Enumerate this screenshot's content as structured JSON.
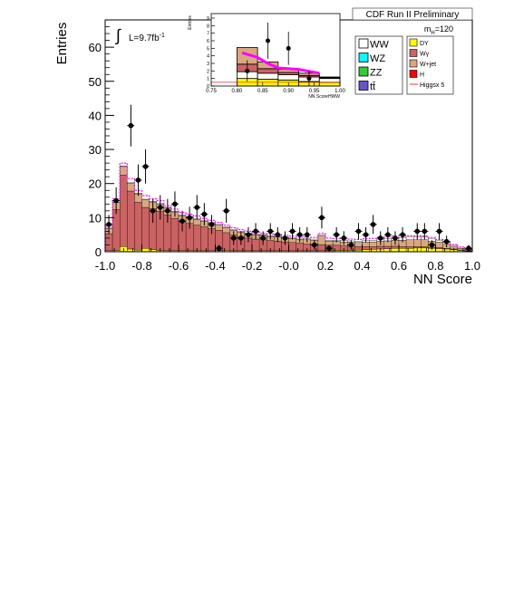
{
  "header": {
    "title": "CDF Run II Preliminary",
    "mass_label_base": "m",
    "mass_label_sub": "H",
    "mass_label_value": "=120"
  },
  "luminosity": {
    "symbol": "∫",
    "text": "L=9.7fb",
    "superscript": "-1"
  },
  "colors": {
    "wgamma": "#cc6262",
    "wjet": "#d9a87f",
    "dy": "#ffff00",
    "ww": "#ffffff",
    "wz": "#00ffff",
    "zz": "#33cc33",
    "ttbar": "#6655cc",
    "higgs": "#ff00ff",
    "h": "#ff0000",
    "data": "#000000"
  },
  "chart_data": [
    {
      "type": "bar",
      "subtype": "stacked-histogram",
      "xlabel": "NN Score",
      "ylabel": "Entries",
      "xlim": [
        -1.0,
        1.0
      ],
      "ylim": [
        0,
        68
      ],
      "xticks": [
        -1.0,
        -0.8,
        -0.6,
        -0.4,
        -0.2,
        0.0,
        0.2,
        0.4,
        0.6,
        0.8,
        1.0
      ],
      "xtick_labels": [
        "-1.0",
        "-0.8",
        "-0.6",
        "-0.4",
        "-0.2",
        "-0.0",
        "0.2",
        "0.4",
        "0.6",
        "0.8",
        "1.0"
      ],
      "yticks": [
        0,
        10,
        20,
        30,
        40,
        50,
        60
      ],
      "ytick_labels": [
        "0",
        "10",
        "20",
        "30",
        "40",
        "50",
        "60"
      ],
      "bin_width": 0.04,
      "bin_centers": [
        -0.98,
        -0.94,
        -0.9,
        -0.86,
        -0.82,
        -0.78,
        -0.74,
        -0.7,
        -0.66,
        -0.62,
        -0.58,
        -0.54,
        -0.5,
        -0.46,
        -0.42,
        -0.38,
        -0.34,
        -0.3,
        -0.26,
        -0.22,
        -0.18,
        -0.14,
        -0.1,
        -0.06,
        -0.02,
        0.02,
        0.06,
        0.1,
        0.14,
        0.18,
        0.22,
        0.26,
        0.3,
        0.34,
        0.38,
        0.42,
        0.46,
        0.5,
        0.54,
        0.58,
        0.62,
        0.66,
        0.7,
        0.74,
        0.78,
        0.82,
        0.86,
        0.9,
        0.94,
        0.98
      ],
      "stack": [
        {
          "name": "DY",
          "color_key": "dy",
          "values": [
            0.3,
            0.4,
            1.5,
            0.8,
            0.5,
            1.0,
            0.6,
            0.4,
            0.3,
            0.3,
            0.3,
            0.3,
            0.3,
            0.3,
            0.3,
            0.3,
            0.4,
            0.3,
            0.3,
            0.3,
            0.3,
            0.3,
            0.3,
            0.3,
            0.3,
            0.3,
            0.3,
            0.3,
            0.3,
            0.3,
            0.3,
            0.4,
            0.4,
            0.4,
            0.5,
            0.6,
            0.7,
            0.8,
            0.9,
            1.0,
            1.0,
            1.0,
            1.1,
            1.1,
            1.0,
            0.9,
            0.8,
            0.6,
            0.4,
            0.2
          ]
        },
        {
          "name": "Wγ",
          "color_key": "wgamma",
          "values": [
            5.0,
            12.0,
            21.0,
            17.0,
            14.0,
            12.0,
            12.0,
            11.5,
            10.5,
            9.5,
            8.5,
            8.0,
            7.5,
            7.0,
            6.5,
            6.0,
            5.2,
            4.6,
            4.1,
            3.7,
            3.4,
            3.2,
            3.0,
            2.8,
            2.6,
            2.4,
            2.2,
            2.0,
            1.9,
            1.8,
            1.6,
            1.5,
            1.3,
            1.2,
            1.0,
            0.9,
            0.8,
            0.8,
            0.7,
            0.6,
            0.5,
            0.5,
            0.4,
            0.4,
            0.3,
            0.3,
            0.2,
            0.2,
            0.1,
            0.1
          ]
        },
        {
          "name": "W+jet",
          "color_key": "wjet",
          "values": [
            1.5,
            2.0,
            2.5,
            2.3,
            2.5,
            2.2,
            2.0,
            2.0,
            2.0,
            1.9,
            1.8,
            1.8,
            1.7,
            1.6,
            1.6,
            1.5,
            1.5,
            1.4,
            1.4,
            1.3,
            1.3,
            1.3,
            1.2,
            1.2,
            1.2,
            1.2,
            1.2,
            1.2,
            1.2,
            2.5,
            1.2,
            1.2,
            1.2,
            1.2,
            1.2,
            1.3,
            1.4,
            1.5,
            1.6,
            1.8,
            1.9,
            2.0,
            2.0,
            2.0,
            1.8,
            1.6,
            1.2,
            0.8,
            0.5,
            0.3
          ]
        },
        {
          "name": "WW",
          "color_key": "ww",
          "values": [
            0.2,
            0.2,
            0.2,
            0.2,
            0.2,
            0.2,
            0.2,
            0.2,
            0.2,
            0.2,
            0.2,
            0.2,
            0.2,
            0.2,
            0.2,
            0.2,
            0.2,
            0.2,
            0.2,
            0.2,
            0.2,
            0.2,
            0.2,
            0.2,
            0.2,
            0.2,
            0.3,
            0.3,
            0.3,
            0.3,
            0.3,
            0.3,
            0.4,
            0.4,
            0.4,
            0.5,
            0.5,
            0.6,
            0.6,
            0.7,
            0.8,
            0.8,
            0.8,
            0.8,
            0.7,
            0.6,
            0.5,
            0.4,
            0.3,
            0.2
          ]
        },
        {
          "name": "WZ",
          "color_key": "wz",
          "values": [
            0,
            0,
            0,
            0,
            0,
            0,
            0,
            0,
            0,
            0,
            0,
            0,
            0,
            0,
            0,
            0,
            0,
            0,
            0,
            0,
            0,
            0,
            0,
            0,
            0,
            0,
            0,
            0,
            0,
            0,
            0,
            0,
            0,
            0,
            0,
            0,
            0,
            0,
            0,
            0,
            0,
            0,
            0,
            0,
            0,
            0,
            0,
            0,
            0,
            0
          ]
        },
        {
          "name": "ZZ",
          "color_key": "zz",
          "values": [
            0,
            0,
            0,
            0,
            0,
            0,
            0,
            0,
            0,
            0,
            0,
            0,
            0,
            0,
            0,
            0,
            0,
            0,
            0,
            0,
            0,
            0,
            0,
            0,
            0,
            0,
            0,
            0,
            0,
            0,
            0,
            0,
            0,
            0,
            0,
            0,
            0,
            0,
            0,
            0,
            0,
            0,
            0,
            0,
            0,
            0,
            0,
            0,
            0,
            0
          ]
        },
        {
          "name": "tt̄",
          "color_key": "ttbar",
          "values": [
            0,
            0,
            0,
            0,
            0,
            0,
            0,
            0,
            0,
            0,
            0,
            0,
            0,
            0,
            0,
            0,
            0,
            0,
            0,
            0,
            0,
            0,
            0,
            0,
            0,
            0,
            0,
            0,
            0,
            0,
            0,
            0,
            0,
            0,
            0,
            0,
            0,
            0,
            0,
            0,
            0,
            0,
            0,
            0,
            0,
            0,
            0,
            0,
            0,
            0
          ]
        }
      ],
      "higgs_x5_total": [
        7.5,
        15.5,
        26.0,
        21.5,
        18.0,
        16.5,
        15.5,
        15.0,
        13.5,
        12.5,
        11.5,
        11.0,
        10.5,
        9.8,
        9.2,
        8.6,
        7.8,
        7.0,
        6.5,
        6.0,
        5.7,
        5.4,
        5.2,
        5.0,
        4.8,
        4.6,
        4.5,
        4.3,
        4.2,
        5.4,
        4.0,
        3.9,
        3.8,
        3.7,
        3.6,
        3.8,
        3.9,
        4.2,
        4.4,
        4.6,
        4.6,
        4.7,
        4.7,
        4.6,
        4.2,
        3.6,
        2.9,
        2.1,
        1.4,
        0.8
      ],
      "data_points": [
        {
          "x": -0.98,
          "y": 8,
          "err": 2.8
        },
        {
          "x": -0.94,
          "y": 15,
          "err": 3.9
        },
        {
          "x": -0.86,
          "y": 37,
          "err": 6.1
        },
        {
          "x": -0.82,
          "y": 21,
          "err": 4.6
        },
        {
          "x": -0.78,
          "y": 25,
          "err": 5.0
        },
        {
          "x": -0.74,
          "y": 12,
          "err": 3.5
        },
        {
          "x": -0.7,
          "y": 13,
          "err": 3.6
        },
        {
          "x": -0.66,
          "y": 12,
          "err": 3.5
        },
        {
          "x": -0.62,
          "y": 14,
          "err": 3.7
        },
        {
          "x": -0.58,
          "y": 9,
          "err": 3.0
        },
        {
          "x": -0.54,
          "y": 10,
          "err": 3.2
        },
        {
          "x": -0.5,
          "y": 13,
          "err": 3.6
        },
        {
          "x": -0.46,
          "y": 11,
          "err": 3.3
        },
        {
          "x": -0.42,
          "y": 8,
          "err": 2.8
        },
        {
          "x": -0.38,
          "y": 1,
          "err": 1.0
        },
        {
          "x": -0.34,
          "y": 12,
          "err": 3.5
        },
        {
          "x": -0.3,
          "y": 4,
          "err": 2.0
        },
        {
          "x": -0.26,
          "y": 4,
          "err": 2.0
        },
        {
          "x": -0.22,
          "y": 5,
          "err": 2.2
        },
        {
          "x": -0.18,
          "y": 6,
          "err": 2.4
        },
        {
          "x": -0.14,
          "y": 4,
          "err": 2.0
        },
        {
          "x": -0.1,
          "y": 6,
          "err": 2.4
        },
        {
          "x": -0.06,
          "y": 5,
          "err": 2.2
        },
        {
          "x": -0.02,
          "y": 4,
          "err": 2.0
        },
        {
          "x": 0.02,
          "y": 6,
          "err": 2.4
        },
        {
          "x": 0.06,
          "y": 5,
          "err": 2.2
        },
        {
          "x": 0.1,
          "y": 5,
          "err": 2.2
        },
        {
          "x": 0.14,
          "y": 2,
          "err": 1.4
        },
        {
          "x": 0.18,
          "y": 10,
          "err": 3.2
        },
        {
          "x": 0.22,
          "y": 1,
          "err": 1.0
        },
        {
          "x": 0.26,
          "y": 5,
          "err": 2.2
        },
        {
          "x": 0.3,
          "y": 4,
          "err": 2.0
        },
        {
          "x": 0.34,
          "y": 2,
          "err": 1.4
        },
        {
          "x": 0.38,
          "y": 6,
          "err": 2.4
        },
        {
          "x": 0.42,
          "y": 5,
          "err": 2.2
        },
        {
          "x": 0.46,
          "y": 8,
          "err": 2.8
        },
        {
          "x": 0.5,
          "y": 4,
          "err": 2.0
        },
        {
          "x": 0.54,
          "y": 5,
          "err": 2.2
        },
        {
          "x": 0.58,
          "y": 4,
          "err": 2.0
        },
        {
          "x": 0.62,
          "y": 5,
          "err": 2.2
        },
        {
          "x": 0.7,
          "y": 6,
          "err": 2.4
        },
        {
          "x": 0.74,
          "y": 6,
          "err": 2.4
        },
        {
          "x": 0.78,
          "y": 2,
          "err": 1.4
        },
        {
          "x": 0.82,
          "y": 6,
          "err": 2.4
        },
        {
          "x": 0.86,
          "y": 3,
          "err": 1.7
        },
        {
          "x": 0.98,
          "y": 1,
          "err": 1.0
        }
      ],
      "legend": {
        "placement": "top-right",
        "col1": [
          {
            "label": "WW",
            "color_key": "ww"
          },
          {
            "label": "WZ",
            "color_key": "wz"
          },
          {
            "label": "ZZ",
            "color_key": "zz"
          },
          {
            "label": "tt̄",
            "color_key": "ttbar"
          }
        ],
        "col2": [
          {
            "label": "DY",
            "color_key": "dy",
            "type": "box"
          },
          {
            "label": "Wγ",
            "color_key": "wgamma",
            "type": "box"
          },
          {
            "label": "W+jet",
            "color_key": "wjet",
            "type": "box"
          },
          {
            "label": "H",
            "color_key": "h",
            "type": "box"
          },
          {
            "label": "Higgsx 5",
            "color_key": "h",
            "type": "line"
          }
        ]
      }
    },
    {
      "type": "bar",
      "subtype": "stacked-histogram-inset",
      "xlabel": "NN ScoreHWW",
      "ylabel": "Entries",
      "xlim": [
        0.75,
        1.0
      ],
      "ylim": [
        0,
        9.6
      ],
      "xticks": [
        0.75,
        0.8,
        0.85,
        0.9,
        0.95,
        1.0
      ],
      "xtick_labels": [
        "0.75",
        "0.80",
        "0.85",
        "0.90",
        "0.95",
        "1.00"
      ],
      "yticks": [
        0,
        1,
        2,
        3,
        4,
        5,
        6,
        7,
        8,
        9
      ],
      "ytick_labels": [
        "0",
        "1",
        "2",
        "3",
        "4",
        "5",
        "6",
        "7",
        "8",
        "9"
      ],
      "bin_edges": [
        0.8,
        0.84,
        0.88,
        0.92,
        0.96,
        1.0
      ],
      "stack": [
        {
          "name": "DY",
          "color_key": "dy",
          "values": [
            1.0,
            0.9,
            0.8,
            0.6,
            0.5
          ]
        },
        {
          "name": "WW",
          "color_key": "ww",
          "values": [
            0.9,
            0.8,
            0.7,
            0.6,
            0.5
          ]
        },
        {
          "name": "Wγ",
          "color_key": "wgamma",
          "values": [
            1.0,
            0.6,
            0.3,
            0.2,
            0.1
          ]
        },
        {
          "name": "W+jet",
          "color_key": "wjet",
          "values": [
            2.2,
            0.9,
            0.4,
            0.3,
            0.1
          ]
        }
      ],
      "higgs_x5_curve": [
        {
          "x": 0.81,
          "y": 4.4
        },
        {
          "x": 0.84,
          "y": 3.8
        },
        {
          "x": 0.86,
          "y": 3.0
        },
        {
          "x": 0.88,
          "y": 2.4
        },
        {
          "x": 0.92,
          "y": 2.2
        },
        {
          "x": 0.96,
          "y": 1.7
        }
      ],
      "data_points": [
        {
          "x": 0.82,
          "y": 2,
          "err": 1.4
        },
        {
          "x": 0.86,
          "y": 6,
          "err": 2.4
        },
        {
          "x": 0.9,
          "y": 5,
          "err": 2.2
        },
        {
          "x": 0.94,
          "y": 1,
          "err": 1.0
        }
      ]
    }
  ]
}
